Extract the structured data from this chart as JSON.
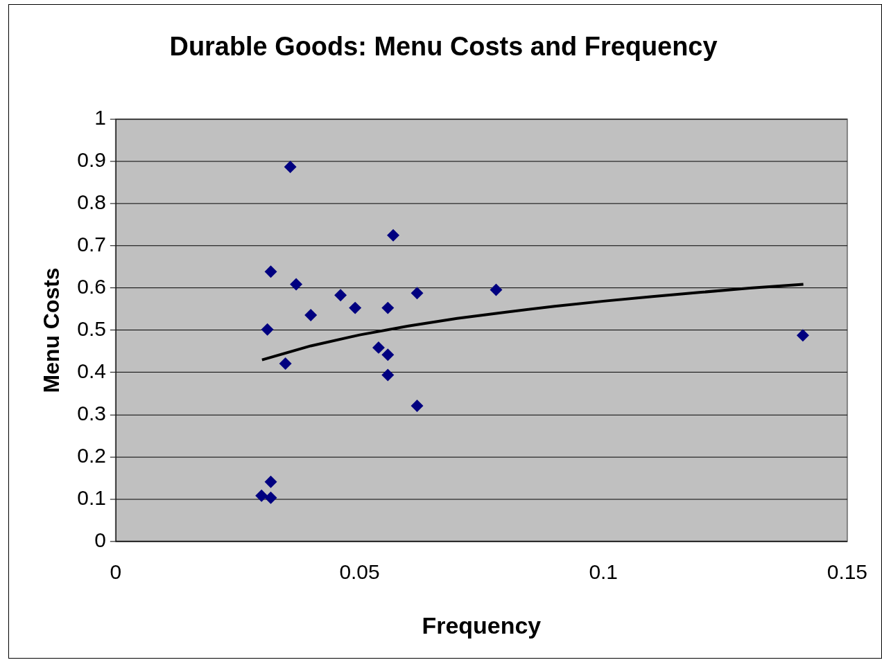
{
  "chart_data": {
    "type": "scatter",
    "title": "Durable Goods: Menu Costs and Frequency",
    "xlabel": "Frequency",
    "ylabel": "Menu Costs",
    "xlim": [
      0,
      0.15
    ],
    "xticks": [
      0,
      0.05,
      0.1,
      0.15
    ],
    "ylim": [
      0,
      1
    ],
    "yticks": [
      0,
      0.1,
      0.2,
      0.3,
      0.4,
      0.5,
      0.6,
      0.7,
      0.8,
      0.9,
      1
    ],
    "grid": "y",
    "legend": false,
    "series": [
      {
        "type": "scatter",
        "color": "#000080",
        "marker": "diamond",
        "x": [
          0.0299,
          0.0318,
          0.0318,
          0.0311,
          0.0318,
          0.0348,
          0.0358,
          0.037,
          0.04,
          0.0461,
          0.0491,
          0.0539,
          0.0558,
          0.0558,
          0.0558,
          0.0569,
          0.0618,
          0.0618,
          0.078,
          0.1409
        ],
        "values": [
          0.108,
          0.103,
          0.141,
          0.502,
          0.639,
          0.421,
          0.887,
          0.609,
          0.536,
          0.583,
          0.553,
          0.459,
          0.553,
          0.442,
          0.394,
          0.725,
          0.588,
          0.321,
          0.596,
          0.488
        ]
      },
      {
        "type": "line",
        "color": "#000000",
        "marker": "none",
        "x": [
          0.03,
          0.04,
          0.05,
          0.06,
          0.07,
          0.08,
          0.09,
          0.1,
          0.11,
          0.12,
          0.13,
          0.141
        ],
        "values": [
          0.43,
          0.463,
          0.489,
          0.51,
          0.528,
          0.543,
          0.557,
          0.569,
          0.58,
          0.59,
          0.6,
          0.609
        ]
      }
    ]
  }
}
